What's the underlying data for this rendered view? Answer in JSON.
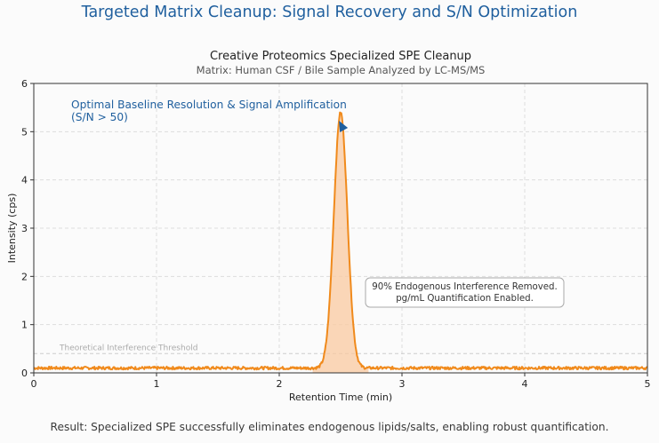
{
  "page": {
    "title": "Targeted Matrix Cleanup: Signal Recovery and S/N Optimization",
    "footer": "Result: Specialized SPE successfully eliminates endogenous lipids/salts, enabling robust quantification."
  },
  "colors": {
    "title": "#1f5f9e",
    "trace": "#f08a1c",
    "fill": "#f9c9a0",
    "annotation": "#1f5f9e",
    "grid": "#dddddd"
  },
  "chart_data": {
    "type": "line",
    "title": "Creative Proteomics Specialized SPE Cleanup",
    "subtitle": "Matrix: Human CSF / Bile Sample Analyzed by LC-MS/MS",
    "xlabel": "Retention Time (min)",
    "ylabel": "Intensity (cps)",
    "xlim": [
      0,
      5
    ],
    "ylim": [
      0,
      6
    ],
    "xticks": [
      "0",
      "1",
      "2",
      "3",
      "4",
      "5"
    ],
    "yticks": [
      "0",
      "1",
      "2",
      "3",
      "4",
      "5",
      "6"
    ],
    "grid": true,
    "series": [
      {
        "peak_center": 2.5,
        "peak_height": 5.3,
        "peak_width_sd": 0.055,
        "baseline": 0.1,
        "baseline_noise": 0.03
      }
    ],
    "threshold": {
      "y": 0.4,
      "label": "Theoretical Interference Threshold"
    },
    "annotations": [
      {
        "text": "Optimal Baseline Resolution & Signal Amplification",
        "line2": "(S/N > 50)",
        "x": 2.53,
        "y": 5.08
      },
      {
        "text": "90% Endogenous Interference Removed.",
        "line2": "pg/mL Quantification Enabled."
      }
    ]
  }
}
